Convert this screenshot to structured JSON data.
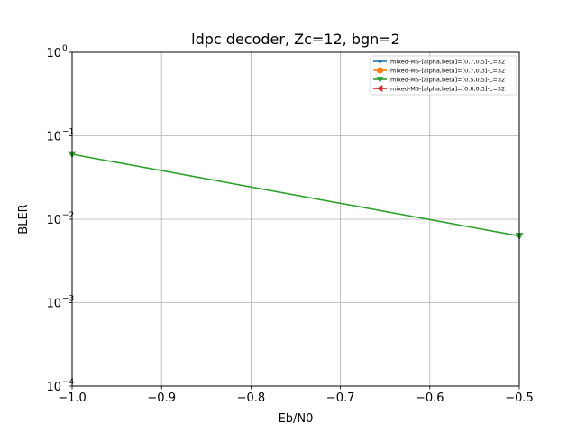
{
  "chart_data": {
    "type": "line",
    "title": "ldpc decoder, Zc=12, bgn=2",
    "xlabel": "Eb/N0",
    "ylabel": "BLER",
    "xlim": [
      -1.0,
      -0.5
    ],
    "ylim": [
      0.0001,
      1
    ],
    "yscale": "log",
    "grid": true,
    "legend_position": "top-right",
    "x_ticks": [
      -1.0,
      -0.9,
      -0.8,
      -0.7,
      -0.6,
      -0.5
    ],
    "x_tick_labels": [
      "−1.0",
      "−0.9",
      "−0.8",
      "−0.7",
      "−0.6",
      "−0.5"
    ],
    "y_ticks": [
      0.0001,
      0.001,
      0.01,
      0.1,
      1
    ],
    "y_tick_labels": [
      {
        "base": "10",
        "exp": "−4"
      },
      {
        "base": "10",
        "exp": "−3"
      },
      {
        "base": "10",
        "exp": "−2"
      },
      {
        "base": "10",
        "exp": "−1"
      },
      {
        "base": "10",
        "exp": "0"
      }
    ],
    "series": [
      {
        "name": "mixed-MS-[alpha,beta]=[0.7,0.5]-L=32",
        "color": "#1f77b4",
        "marker": "point",
        "x": [],
        "y": []
      },
      {
        "name": "mixed-MS-[alpha,beta]=[0.7,0.3]-L=32",
        "color": "#ff7f0e",
        "marker": "circle",
        "x": [],
        "y": []
      },
      {
        "name": "mixed-MS-[alpha,beta]=[0.5,0.5]-L=32",
        "color": "#2ca02c",
        "marker": "triangle-down",
        "x": [
          -1.0,
          -0.5
        ],
        "y": [
          0.06,
          0.0063
        ]
      },
      {
        "name": "mixed-MS-[alpha,beta]=[0.8,0.3]-L=32",
        "color": "#d62728",
        "marker": "triangle-left",
        "x": [],
        "y": []
      }
    ]
  }
}
